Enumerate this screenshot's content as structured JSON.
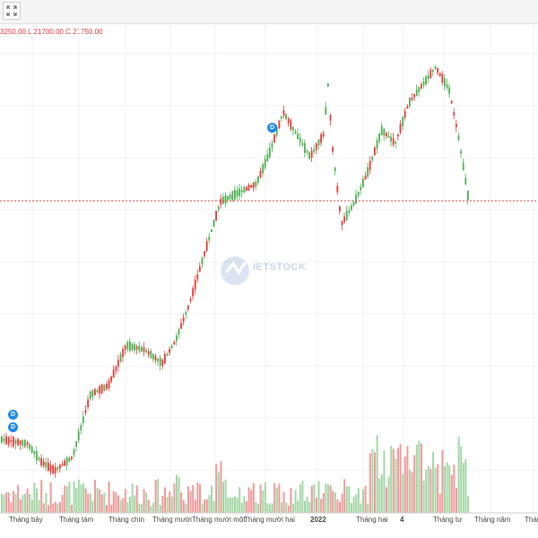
{
  "toolbar": {
    "fullscreen_icon": "expand-icon"
  },
  "ohlc_text": "3250.00  L  21700.00  C  21750.00",
  "colors": {
    "up": "#4caf50",
    "down": "#e53935",
    "vol_up": "#a5d6a7",
    "vol_down": "#ef9a9a",
    "grid": "#f0f0f0",
    "price_line": "#e53935",
    "marker": "#1e88e5"
  },
  "watermark": {
    "text": "IETSTOCK",
    "sub": ""
  },
  "markers": [
    {
      "label": "D"
    },
    {
      "label": "D"
    },
    {
      "label": "D"
    }
  ],
  "chart_data": {
    "type": "candlestick",
    "x_labels": [
      "Tháng bảy",
      "Tháng tám",
      "Tháng chín",
      "Tháng mười",
      "Tháng mười một",
      "Tháng mười hai",
      "2022",
      "Tháng hai",
      "4",
      "Tháng tư",
      "Tháng năm",
      "Tháng"
    ],
    "bold_labels": [
      "2022",
      "4"
    ],
    "last_close": 21750,
    "grid": true
  }
}
